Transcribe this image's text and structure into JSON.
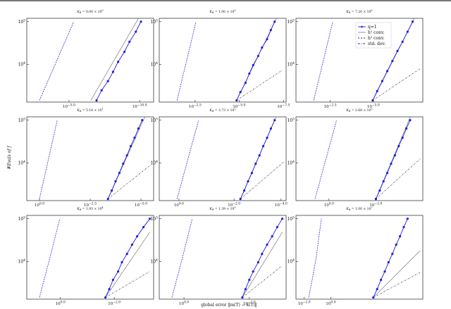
{
  "figure": {
    "ylabel": "#Evals of f",
    "xlabel": "global error ‖m(T) − x(T)‖",
    "legend": {
      "entries": [
        {
          "label": "q=1",
          "color": "#1f1fdd",
          "dash": "none",
          "marker": true
        },
        {
          "label": "h¹ conv.",
          "color": "#888888",
          "dash": "none",
          "marker": false
        },
        {
          "label": "h² conv.",
          "color": "#333333",
          "dash": "2,2",
          "marker": false
        },
        {
          "label": "std. dev.",
          "color": "#3333cc",
          "dash": "3,1.5,1,1.5",
          "marker": false
        }
      ]
    }
  },
  "chart_data": [
    {
      "type": "line",
      "title": "K_R = 0.00 × 10⁰",
      "title_base": "K",
      "title_sub": "R",
      "title_rest": " = 0.00 × 10",
      "title_exp": "0",
      "xticks": [
        {
          "base": "10",
          "exp": "−5.0",
          "pos": 0.333
        },
        {
          "base": "10",
          "exp": "−10.0",
          "pos": 0.89
        }
      ],
      "yticks": [
        {
          "base": "10",
          "exp": "4",
          "pos": 0.45
        },
        {
          "base": "10",
          "exp": "5",
          "pos": 0.96
        }
      ],
      "std_dev": {
        "x": [
          0.1,
          0.37
        ],
        "y": [
          0.02,
          0.96
        ]
      },
      "h1": {
        "x": [
          0.505,
          0.9
        ],
        "y": [
          0.02,
          1.05
        ]
      },
      "h2": null,
      "q1": {
        "x": [
          0.55,
          0.59,
          0.64,
          0.68,
          0.72,
          0.77,
          0.81,
          0.86,
          0.9
        ],
        "y": [
          0.02,
          0.14,
          0.25,
          0.36,
          0.48,
          0.6,
          0.72,
          0.84,
          0.96
        ]
      },
      "legend": false
    },
    {
      "type": "line",
      "title": "K_R = 1.00 × 10⁰",
      "title_base": "K",
      "title_sub": "R",
      "title_rest": " = 1.00 × 10",
      "title_exp": "0",
      "xticks": [
        {
          "base": "10",
          "exp": "−2.5",
          "pos": 0.283
        },
        {
          "base": "10",
          "exp": "−5.0",
          "pos": 0.63
        },
        {
          "base": "10",
          "exp": "−7.5",
          "pos": 0.98
        }
      ],
      "yticks": [
        {
          "base": "10",
          "exp": "4",
          "pos": 0.45
        },
        {
          "base": "10",
          "exp": "5",
          "pos": 0.96
        }
      ],
      "std_dev": {
        "x": [
          0.14,
          0.29
        ],
        "y": [
          0.02,
          0.96
        ]
      },
      "h1": {
        "x": [
          0.61,
          0.94
        ],
        "y": [
          0.02,
          1.05
        ]
      },
      "h2": {
        "x": [
          0.61,
          0.97
        ],
        "y": [
          0.02,
          0.38
        ]
      },
      "q1": {
        "x": [
          0.61,
          0.64,
          0.68,
          0.71,
          0.74,
          0.78,
          0.81,
          0.85,
          0.88,
          0.91
        ],
        "y": [
          0.02,
          0.12,
          0.23,
          0.34,
          0.44,
          0.55,
          0.65,
          0.75,
          0.86,
          0.96
        ]
      },
      "legend": false
    },
    {
      "type": "line",
      "title": "K_R = 7.20 × 10⁰",
      "title_base": "K",
      "title_sub": "R",
      "title_rest": " = 7.20 × 10",
      "title_exp": "0",
      "xticks": [
        {
          "base": "10",
          "exp": "−2.5",
          "pos": 0.27
        },
        {
          "base": "10",
          "exp": "−5.0",
          "pos": 0.61
        }
      ],
      "yticks": [
        {
          "base": "10",
          "exp": "4",
          "pos": 0.45
        },
        {
          "base": "10",
          "exp": "5",
          "pos": 0.96
        }
      ],
      "std_dev": {
        "x": [
          0.14,
          0.29
        ],
        "y": [
          0.02,
          0.96
        ]
      },
      "h1": {
        "x": [
          0.605,
          0.95
        ],
        "y": [
          0.02,
          1.05
        ]
      },
      "h2": {
        "x": [
          0.605,
          0.98
        ],
        "y": [
          0.02,
          0.4
        ]
      },
      "q1": {
        "x": [
          0.605,
          0.64,
          0.68,
          0.72,
          0.76,
          0.8,
          0.84,
          0.88,
          0.92
        ],
        "y": [
          0.02,
          0.13,
          0.25,
          0.37,
          0.49,
          0.61,
          0.72,
          0.84,
          0.96
        ]
      },
      "legend": true
    },
    {
      "type": "line",
      "title": "K_R = 5.18 × 10¹",
      "title_base": "K",
      "title_sub": "R",
      "title_rest": " = 5.18 × 10",
      "title_exp": "1",
      "xticks": [
        {
          "base": "10",
          "exp": "0.0",
          "pos": 0.1
        },
        {
          "base": "10",
          "exp": "−2.5",
          "pos": 0.5
        },
        {
          "base": "10",
          "exp": "−5.0",
          "pos": 0.9
        }
      ],
      "yticks": [
        {
          "base": "10",
          "exp": "4",
          "pos": 0.45
        },
        {
          "base": "10",
          "exp": "5",
          "pos": 0.96
        }
      ],
      "std_dev": {
        "x": [
          0.1,
          0.24
        ],
        "y": [
          0.02,
          0.96
        ]
      },
      "h1": {
        "x": [
          0.64,
          0.94
        ],
        "y": [
          0.02,
          1.03
        ]
      },
      "h2": {
        "x": [
          0.64,
          0.98
        ],
        "y": [
          0.02,
          0.43
        ]
      },
      "q1": {
        "x": [
          0.64,
          0.67,
          0.7,
          0.73,
          0.76,
          0.79,
          0.82,
          0.85,
          0.88,
          0.91
        ],
        "y": [
          0.02,
          0.12,
          0.23,
          0.33,
          0.44,
          0.54,
          0.65,
          0.75,
          0.86,
          0.96
        ]
      },
      "legend": false
    },
    {
      "type": "line",
      "title": "K_R = 3.73 × 10²",
      "title_base": "K",
      "title_sub": "R",
      "title_rest": " = 3.73 × 10",
      "title_exp": "2",
      "xticks": [
        {
          "base": "10",
          "exp": "0.0",
          "pos": 0.155
        },
        {
          "base": "10",
          "exp": "−2.0",
          "pos": 0.59
        },
        {
          "base": "10",
          "exp": "−4.0",
          "pos": 0.96
        }
      ],
      "yticks": [
        {
          "base": "10",
          "exp": "4",
          "pos": 0.45
        },
        {
          "base": "10",
          "exp": "5",
          "pos": 0.96
        }
      ],
      "std_dev": {
        "x": [
          0.14,
          0.31
        ],
        "y": [
          0.02,
          0.96
        ]
      },
      "h1": {
        "x": [
          0.64,
          0.93
        ],
        "y": [
          0.02,
          1.03
        ]
      },
      "h2": {
        "x": [
          0.64,
          0.98
        ],
        "y": [
          0.02,
          0.46
        ]
      },
      "q1": {
        "x": [
          0.64,
          0.67,
          0.7,
          0.73,
          0.76,
          0.79,
          0.82,
          0.85,
          0.88,
          0.91
        ],
        "y": [
          0.02,
          0.12,
          0.23,
          0.33,
          0.44,
          0.54,
          0.65,
          0.75,
          0.86,
          0.96
        ]
      },
      "legend": false
    },
    {
      "type": "line",
      "title": "K_R = 2.68 × 10³",
      "title_base": "K",
      "title_sub": "R",
      "title_rest": " = 2.68 × 10",
      "title_exp": "3",
      "xticks": [
        {
          "base": "10",
          "exp": "0.0",
          "pos": 0.26
        },
        {
          "base": "10",
          "exp": "−2.0",
          "pos": 0.63
        }
      ],
      "yticks": [
        {
          "base": "10",
          "exp": "4",
          "pos": 0.45
        },
        {
          "base": "10",
          "exp": "5",
          "pos": 0.96
        }
      ],
      "std_dev": {
        "x": [
          0.15,
          0.32
        ],
        "y": [
          0.02,
          0.96
        ]
      },
      "h1": {
        "x": [
          0.63,
          0.91
        ],
        "y": [
          0.02,
          1.03
        ]
      },
      "h2": {
        "x": [
          0.63,
          0.98
        ],
        "y": [
          0.02,
          0.5
        ]
      },
      "q1": {
        "x": [
          0.63,
          0.66,
          0.69,
          0.72,
          0.75,
          0.78,
          0.81,
          0.84,
          0.87,
          0.9
        ],
        "y": [
          0.02,
          0.12,
          0.23,
          0.33,
          0.44,
          0.54,
          0.65,
          0.75,
          0.86,
          0.96
        ]
      },
      "legend": false
    },
    {
      "type": "line",
      "title": "K_R = 1.93 × 10⁴",
      "title_base": "K",
      "title_sub": "R",
      "title_rest": " = 1.93 × 10",
      "title_exp": "4",
      "xticks": [
        {
          "base": "10",
          "exp": "0.0",
          "pos": 0.265
        },
        {
          "base": "10",
          "exp": "−2.0",
          "pos": 0.69
        }
      ],
      "yticks": [
        {
          "base": "10",
          "exp": "4",
          "pos": 0.45
        },
        {
          "base": "10",
          "exp": "5",
          "pos": 0.96
        }
      ],
      "std_dev": {
        "x": [
          0.1,
          0.18,
          0.26
        ],
        "y": [
          0.02,
          0.48,
          0.96
        ]
      },
      "h1": {
        "x": [
          0.62,
          0.97
        ],
        "y": [
          0.02,
          0.8
        ]
      },
      "h2": {
        "x": [
          0.62,
          0.97
        ],
        "y": [
          0.02,
          0.33
        ]
      },
      "q1": {
        "x": [
          0.62,
          0.65,
          0.68,
          0.72,
          0.75,
          0.79,
          0.83,
          0.87,
          0.92,
          0.97
        ],
        "y": [
          0.02,
          0.12,
          0.23,
          0.33,
          0.44,
          0.54,
          0.65,
          0.75,
          0.86,
          0.96
        ]
      },
      "legend": false
    },
    {
      "type": "line",
      "title": "K_R = 1.39 × 10⁵",
      "title_base": "K",
      "title_sub": "R",
      "title_rest": " = 1.39 × 10",
      "title_exp": "5",
      "xticks": [
        {
          "base": "10",
          "exp": "0.0",
          "pos": 0.195
        },
        {
          "base": "10",
          "exp": "−2.0",
          "pos": 0.71
        }
      ],
      "yticks": [
        {
          "base": "10",
          "exp": "4",
          "pos": 0.45
        },
        {
          "base": "10",
          "exp": "5",
          "pos": 0.96
        }
      ],
      "std_dev": {
        "x": [
          0.1,
          0.18,
          0.26
        ],
        "y": [
          0.02,
          0.48,
          0.96
        ]
      },
      "h1": {
        "x": [
          0.655,
          0.97
        ],
        "y": [
          0.02,
          0.8
        ]
      },
      "h2": {
        "x": [
          0.655,
          0.97
        ],
        "y": [
          0.02,
          0.4
        ]
      },
      "q1": {
        "x": [
          0.655,
          0.68,
          0.71,
          0.74,
          0.78,
          0.81,
          0.85,
          0.89,
          0.93,
          0.97
        ],
        "y": [
          0.02,
          0.12,
          0.23,
          0.33,
          0.44,
          0.54,
          0.65,
          0.75,
          0.86,
          0.96
        ]
      },
      "legend": false
    },
    {
      "type": "line",
      "title": "K_R = 1.00 × 10⁷",
      "title_base": "K",
      "title_sub": "R",
      "title_rest": " = 1.00 × 10",
      "title_exp": "7",
      "xticks": [
        {
          "base": "10",
          "exp": "−2.0",
          "pos": 0.065
        },
        {
          "base": "10",
          "exp": "0.0",
          "pos": 0.275
        }
      ],
      "yticks": [
        {
          "base": "10",
          "exp": "4",
          "pos": 0.45
        },
        {
          "base": "10",
          "exp": "5",
          "pos": 0.96
        }
      ],
      "std_dev": {
        "x": [
          0.1,
          0.13,
          0.16,
          0.18,
          0.2
        ],
        "y": [
          0.02,
          0.25,
          0.5,
          0.73,
          0.96
        ]
      },
      "h1": {
        "x": [
          0.61,
          0.98
        ],
        "y": [
          0.02,
          0.58
        ]
      },
      "h2": {
        "x": [
          0.61,
          0.98
        ],
        "y": [
          0.02,
          0.32
        ]
      },
      "q1": {
        "x": [
          0.61,
          0.64,
          0.67,
          0.7,
          0.73,
          0.76,
          0.79,
          0.82,
          0.85,
          0.88
        ],
        "y": [
          0.02,
          0.12,
          0.23,
          0.33,
          0.44,
          0.54,
          0.65,
          0.75,
          0.86,
          0.96
        ]
      },
      "legend": false
    }
  ]
}
